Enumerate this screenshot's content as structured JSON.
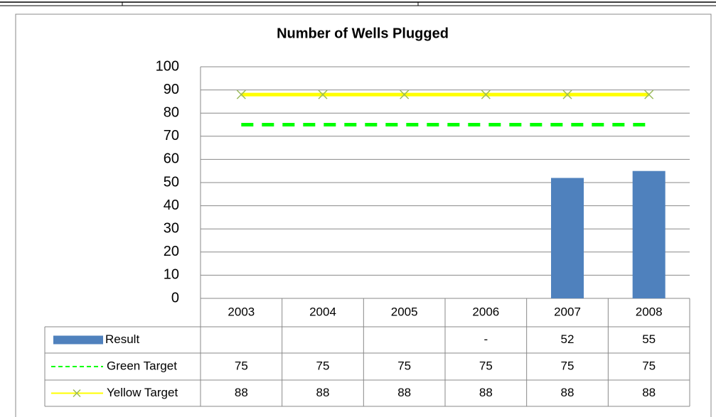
{
  "chart_data": {
    "type": "bar",
    "title": "Number of Wells Plugged",
    "categories": [
      "2003",
      "2004",
      "2005",
      "2006",
      "2007",
      "2008"
    ],
    "series": [
      {
        "name": "Result",
        "kind": "bar",
        "color": "#4f81bd",
        "values": [
          null,
          null,
          null,
          0,
          52,
          55
        ],
        "value_labels": [
          null,
          null,
          null,
          "-",
          null,
          null
        ]
      },
      {
        "name": "Green Target",
        "kind": "line",
        "dash": true,
        "color": "#00ff00",
        "values": [
          75,
          75,
          75,
          75,
          75,
          75
        ]
      },
      {
        "name": "Yellow Target",
        "kind": "line",
        "dash": false,
        "marker": "x",
        "marker_color": "#9bbb59",
        "color": "#ffff00",
        "values": [
          88,
          88,
          88,
          88,
          88,
          88
        ]
      }
    ],
    "ylim": [
      0,
      100
    ],
    "yticks": [
      0,
      10,
      20,
      30,
      40,
      50,
      60,
      70,
      80,
      90,
      100
    ],
    "grid": true,
    "data_table": true
  }
}
